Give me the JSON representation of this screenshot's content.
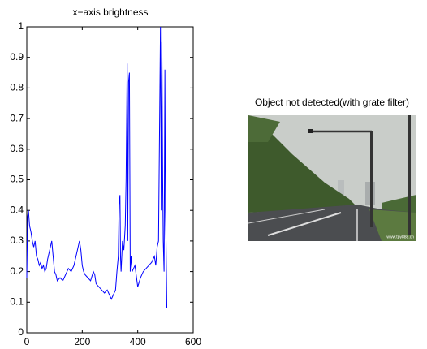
{
  "chart_data": {
    "type": "line",
    "title": "x−axis brightness",
    "x": [
      0,
      3,
      6,
      10,
      15,
      20,
      25,
      30,
      35,
      40,
      45,
      50,
      55,
      60,
      65,
      70,
      75,
      80,
      85,
      90,
      95,
      100,
      105,
      110,
      120,
      130,
      140,
      150,
      160,
      170,
      180,
      190,
      195,
      200,
      205,
      210,
      220,
      230,
      240,
      245,
      250,
      260,
      270,
      280,
      290,
      300,
      305,
      310,
      315,
      320,
      325,
      330,
      333,
      336,
      338,
      340,
      345,
      350,
      355,
      358,
      362,
      364,
      367,
      370,
      373,
      376,
      380,
      390,
      400,
      410,
      420,
      430,
      440,
      450,
      460,
      465,
      470,
      475,
      478,
      482,
      485,
      487,
      490,
      492,
      495,
      498,
      500,
      502,
      505
    ],
    "series": [
      {
        "color": "#0000ff",
        "values": [
          0.18,
          0.38,
          0.4,
          0.35,
          0.33,
          0.3,
          0.28,
          0.3,
          0.25,
          0.24,
          0.22,
          0.23,
          0.21,
          0.22,
          0.2,
          0.21,
          0.24,
          0.26,
          0.28,
          0.3,
          0.25,
          0.2,
          0.19,
          0.17,
          0.18,
          0.17,
          0.19,
          0.21,
          0.2,
          0.22,
          0.26,
          0.3,
          0.27,
          0.22,
          0.2,
          0.19,
          0.18,
          0.17,
          0.2,
          0.19,
          0.16,
          0.15,
          0.14,
          0.13,
          0.14,
          0.12,
          0.11,
          0.12,
          0.13,
          0.14,
          0.2,
          0.25,
          0.42,
          0.45,
          0.25,
          0.2,
          0.3,
          0.27,
          0.35,
          0.5,
          0.88,
          0.3,
          0.82,
          0.85,
          0.2,
          0.25,
          0.2,
          0.22,
          0.15,
          0.18,
          0.2,
          0.21,
          0.22,
          0.23,
          0.25,
          0.22,
          0.28,
          0.3,
          0.6,
          1.0,
          0.4,
          0.95,
          0.5,
          0.3,
          0.2,
          0.86,
          0.4,
          0.3,
          0.08
        ]
      }
    ],
    "xlim": [
      0,
      600
    ],
    "xticks": [
      0,
      200,
      400,
      600
    ],
    "ylim": [
      0,
      1
    ],
    "yticks": [
      0,
      0.1,
      0.2,
      0.3,
      0.4,
      0.5,
      0.6,
      0.7,
      0.8,
      0.9,
      1
    ]
  },
  "image": {
    "title": "Object not detected(with grate filter)",
    "watermark": "www.tpy888.cn"
  }
}
